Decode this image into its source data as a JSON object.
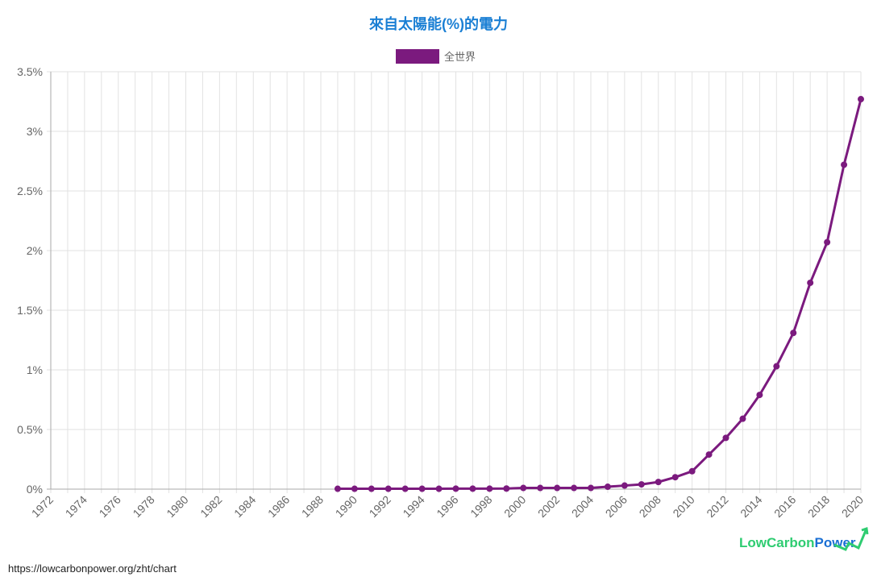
{
  "chart_data": {
    "type": "line",
    "title": "來自太陽能(%)的電力",
    "xlabel": "",
    "ylabel": "",
    "xlim": [
      1972,
      2020
    ],
    "ylim": [
      0,
      3.5
    ],
    "grid": true,
    "legend_position": "top",
    "y_ticks": [
      "0%",
      "0.5%",
      "1%",
      "1.5%",
      "2%",
      "2.5%",
      "3%",
      "3.5%"
    ],
    "x_ticks": [
      "1972",
      "1974",
      "1976",
      "1978",
      "1980",
      "1982",
      "1984",
      "1986",
      "1988",
      "1990",
      "1992",
      "1994",
      "1996",
      "1998",
      "2000",
      "2002",
      "2004",
      "2006",
      "2008",
      "2010",
      "2012",
      "2014",
      "2016",
      "2018",
      "2020"
    ],
    "series": [
      {
        "name": "全世界",
        "color": "#7b1a7e",
        "x": [
          1989,
          1990,
          1991,
          1992,
          1993,
          1994,
          1995,
          1996,
          1997,
          1998,
          1999,
          2000,
          2001,
          2002,
          2003,
          2004,
          2005,
          2006,
          2007,
          2008,
          2009,
          2010,
          2011,
          2012,
          2013,
          2014,
          2015,
          2016,
          2017,
          2018,
          2019,
          2020
        ],
        "values": [
          0.003,
          0.003,
          0.003,
          0.003,
          0.003,
          0.003,
          0.003,
          0.004,
          0.004,
          0.004,
          0.005,
          0.01,
          0.01,
          0.01,
          0.01,
          0.01,
          0.02,
          0.03,
          0.04,
          0.06,
          0.1,
          0.15,
          0.29,
          0.43,
          0.59,
          0.79,
          1.03,
          1.31,
          1.73,
          2.07,
          2.72,
          3.27
        ]
      }
    ]
  },
  "footer": {
    "url": "https://lowcarbonpower.org/zht/chart",
    "logo_a": "LowCarbon",
    "logo_b": "Power"
  }
}
